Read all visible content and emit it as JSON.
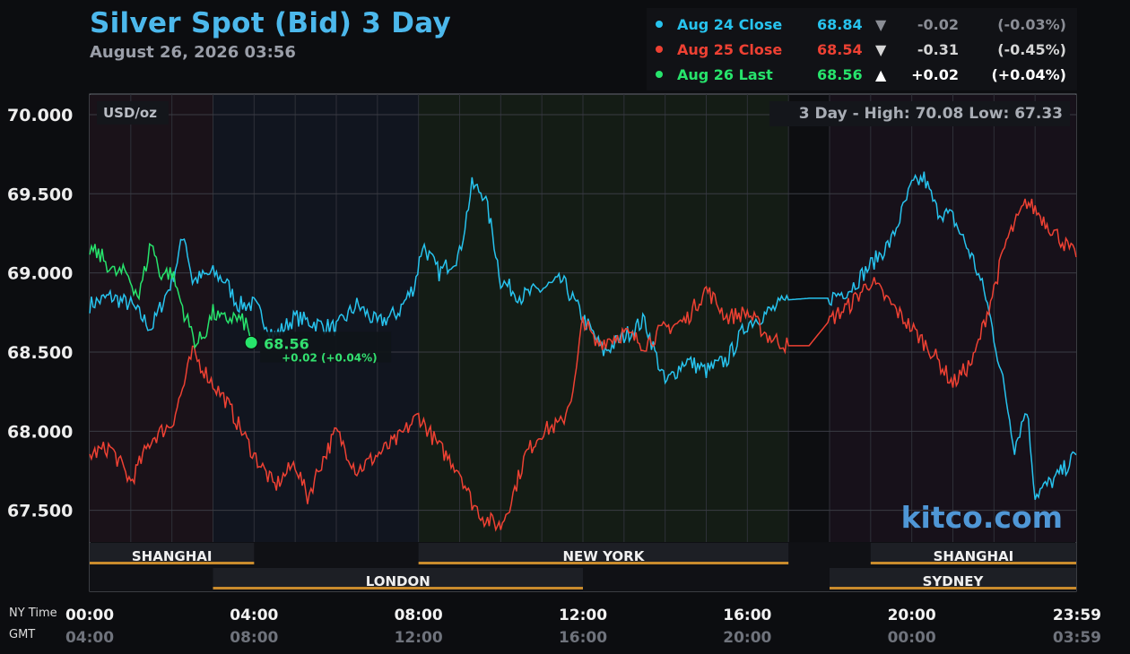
{
  "header": {
    "title": "Silver Spot (Bid) 3 Day",
    "date": "August 26, 2026 03:56"
  },
  "legend": [
    {
      "name": "Aug 24 Close",
      "value": "68.84",
      "arrow": "▼",
      "change": "-0.02",
      "pct": "(-0.03%)",
      "color": "#27c3ee",
      "change_color": "#8a8d95"
    },
    {
      "name": "Aug 25 Close",
      "value": "68.54",
      "arrow": "▼",
      "change": "-0.31",
      "pct": "(-0.45%)",
      "color": "#ee4133",
      "change_color": "#d6d6d6"
    },
    {
      "name": "Aug 26 Last",
      "value": "68.56",
      "arrow": "▲",
      "change": "+0.02",
      "pct": "(+0.04%)",
      "color": "#27e46c",
      "change_color": "#ffffff"
    }
  ],
  "chart_data": {
    "type": "line",
    "unit_label": "USD/oz",
    "high_low_label": "3 Day - High: 70.08  Low: 67.33",
    "ylim": [
      67.3,
      70.13
    ],
    "y_ticks": [
      "70.000",
      "69.500",
      "69.000",
      "68.500",
      "68.000",
      "67.500"
    ],
    "y_tick_values": [
      70.0,
      69.5,
      69.0,
      68.5,
      68.0,
      67.5
    ],
    "x_time_label": "NY Time",
    "x_gmt_label": "GMT",
    "x_ticks_ny": [
      "00:00",
      "04:00",
      "08:00",
      "12:00",
      "16:00",
      "20:00",
      "23:59"
    ],
    "x_ticks_gmt": [
      "04:00",
      "08:00",
      "12:00",
      "16:00",
      "20:00",
      "00:00",
      "03:59"
    ],
    "x_tick_hours": [
      0,
      4,
      8,
      12,
      16,
      20,
      23.98
    ],
    "sessions": [
      {
        "name": "SHANGHAI",
        "start": 0,
        "end": 4,
        "row": 1
      },
      {
        "name": "NEW YORK",
        "start": 8,
        "end": 17,
        "row": 1
      },
      {
        "name": "SHANGHAI",
        "start": 19,
        "end": 24,
        "row": 1
      },
      {
        "name": "LONDON",
        "start": 3,
        "end": 12,
        "row": 2
      },
      {
        "name": "SYDNEY",
        "start": 18,
        "end": 24,
        "row": 2
      }
    ],
    "last_point": {
      "hour": 3.93,
      "value": 68.56,
      "label": "68.56",
      "change_label": "+0.02 (+0.04%)"
    },
    "series": [
      {
        "color": "#27c3ee",
        "x": [
          0,
          0.5,
          1,
          1.5,
          2,
          2.3,
          2.5,
          3,
          3.3,
          3.6,
          4,
          4.5,
          5,
          5.5,
          6,
          6.5,
          7,
          7.5,
          7.9,
          8.1,
          8.5,
          9,
          9.3,
          9.6,
          9.8,
          10,
          10.5,
          11,
          11.5,
          12,
          12.5,
          13,
          13.5,
          14,
          14.5,
          15,
          15.5,
          16,
          16.5,
          17,
          17.5,
          18,
          18.5,
          19,
          19.5,
          20,
          20.3,
          20.6,
          21,
          21.5,
          21.8,
          22,
          22.3,
          22.5,
          22.8,
          23,
          23.5,
          24
        ],
        "y": [
          68.8,
          68.85,
          68.8,
          68.65,
          68.95,
          69.25,
          68.95,
          69.0,
          68.95,
          68.8,
          68.8,
          68.6,
          68.72,
          68.68,
          68.65,
          68.8,
          68.68,
          68.75,
          68.92,
          69.18,
          69.0,
          69.12,
          69.55,
          69.5,
          69.25,
          68.95,
          68.85,
          68.9,
          68.95,
          68.72,
          68.5,
          68.6,
          68.7,
          68.3,
          68.45,
          68.38,
          68.45,
          68.68,
          68.75,
          68.83,
          68.84,
          68.84,
          68.9,
          69.05,
          69.2,
          69.55,
          69.6,
          69.4,
          69.35,
          69.08,
          68.85,
          68.6,
          68.2,
          67.9,
          68.15,
          67.6,
          67.7,
          67.85
        ]
      },
      {
        "color": "#ee4133",
        "x": [
          0,
          0.5,
          1,
          1.5,
          2,
          2.3,
          2.5,
          2.7,
          3,
          3.3,
          3.7,
          4,
          4.5,
          5,
          5.3,
          5.6,
          6,
          6.5,
          7,
          7.5,
          8,
          8.5,
          9,
          9.3,
          9.6,
          10,
          10.3,
          10.6,
          11,
          11.5,
          11.8,
          12,
          12.3,
          12.6,
          13,
          13.5,
          14,
          14.5,
          15,
          15.5,
          16,
          16.5,
          17,
          17.5,
          18,
          18.5,
          19,
          19.5,
          20,
          20.5,
          21,
          21.5,
          22,
          22.3,
          22.5,
          22.8,
          23,
          23.5,
          24
        ],
        "y": [
          67.85,
          67.9,
          67.68,
          67.95,
          68.05,
          68.3,
          68.5,
          68.42,
          68.3,
          68.2,
          68.0,
          67.85,
          67.65,
          67.8,
          67.58,
          67.78,
          68.0,
          67.75,
          67.85,
          67.95,
          68.1,
          67.9,
          67.75,
          67.55,
          67.45,
          67.4,
          67.6,
          67.85,
          68.0,
          68.05,
          68.3,
          68.72,
          68.55,
          68.58,
          68.62,
          68.55,
          68.65,
          68.7,
          68.9,
          68.72,
          68.75,
          68.6,
          68.54,
          68.54,
          68.7,
          68.8,
          68.95,
          68.8,
          68.65,
          68.5,
          68.3,
          68.45,
          68.9,
          69.2,
          69.3,
          69.45,
          69.4,
          69.25,
          69.1
        ]
      },
      {
        "color": "#27e46c",
        "x": [
          0,
          0.3,
          0.6,
          0.9,
          1.2,
          1.5,
          1.7,
          2.0,
          2.3,
          2.6,
          2.8,
          3.0,
          3.2,
          3.5,
          3.8,
          3.93
        ],
        "y": [
          69.15,
          69.1,
          69.0,
          69.0,
          68.85,
          69.2,
          69.0,
          69.0,
          68.75,
          68.55,
          68.62,
          68.75,
          68.7,
          68.72,
          68.68,
          68.56
        ]
      }
    ]
  },
  "brand": "kitco.com"
}
